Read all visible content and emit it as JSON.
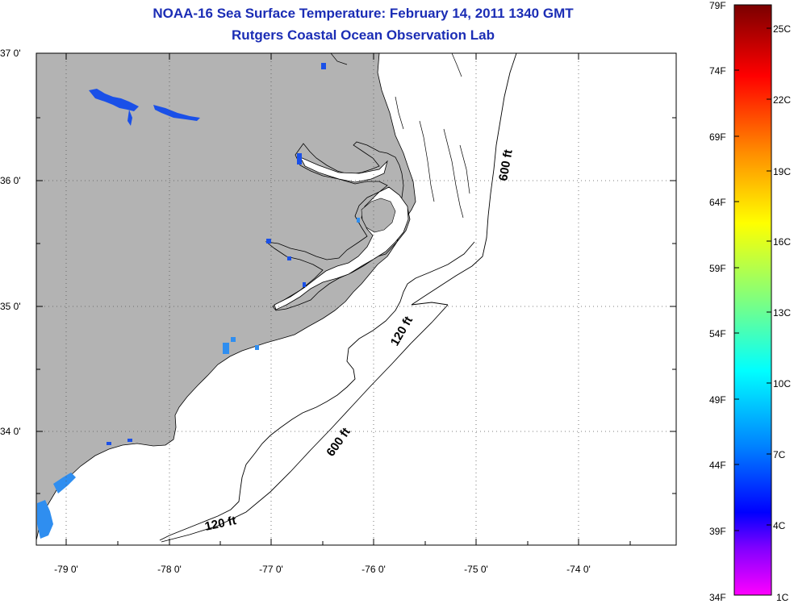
{
  "header": {
    "title": "NOAA-16 Sea Surface Temperature:  February 14, 2011 1340 GMT",
    "subtitle": "Rutgers Coastal Ocean Observation Lab"
  },
  "map": {
    "lat_labels": [
      "37 0'",
      "36 0'",
      "35 0'",
      "34 0'"
    ],
    "lon_labels": [
      "-79 0'",
      "-78 0'",
      "-77 0'",
      "-76 0'",
      "-75 0'",
      "-74 0'"
    ],
    "contour_labels": [
      "600 ft",
      "120 ft",
      "600 ft",
      "120 ft"
    ],
    "colors": {
      "land": "#b3b3b3",
      "water": "#ffffff",
      "sst_cold": "#1a50e8"
    }
  },
  "colorbar": {
    "fahrenheit_labels": [
      "79F",
      "74F",
      "69F",
      "64F",
      "59F",
      "54F",
      "49F",
      "44F",
      "39F",
      "34F"
    ],
    "celsius_labels": [
      "25C",
      "22C",
      "19C",
      "16C",
      "13C",
      "10C",
      "7C",
      "4C",
      "1C"
    ]
  }
}
